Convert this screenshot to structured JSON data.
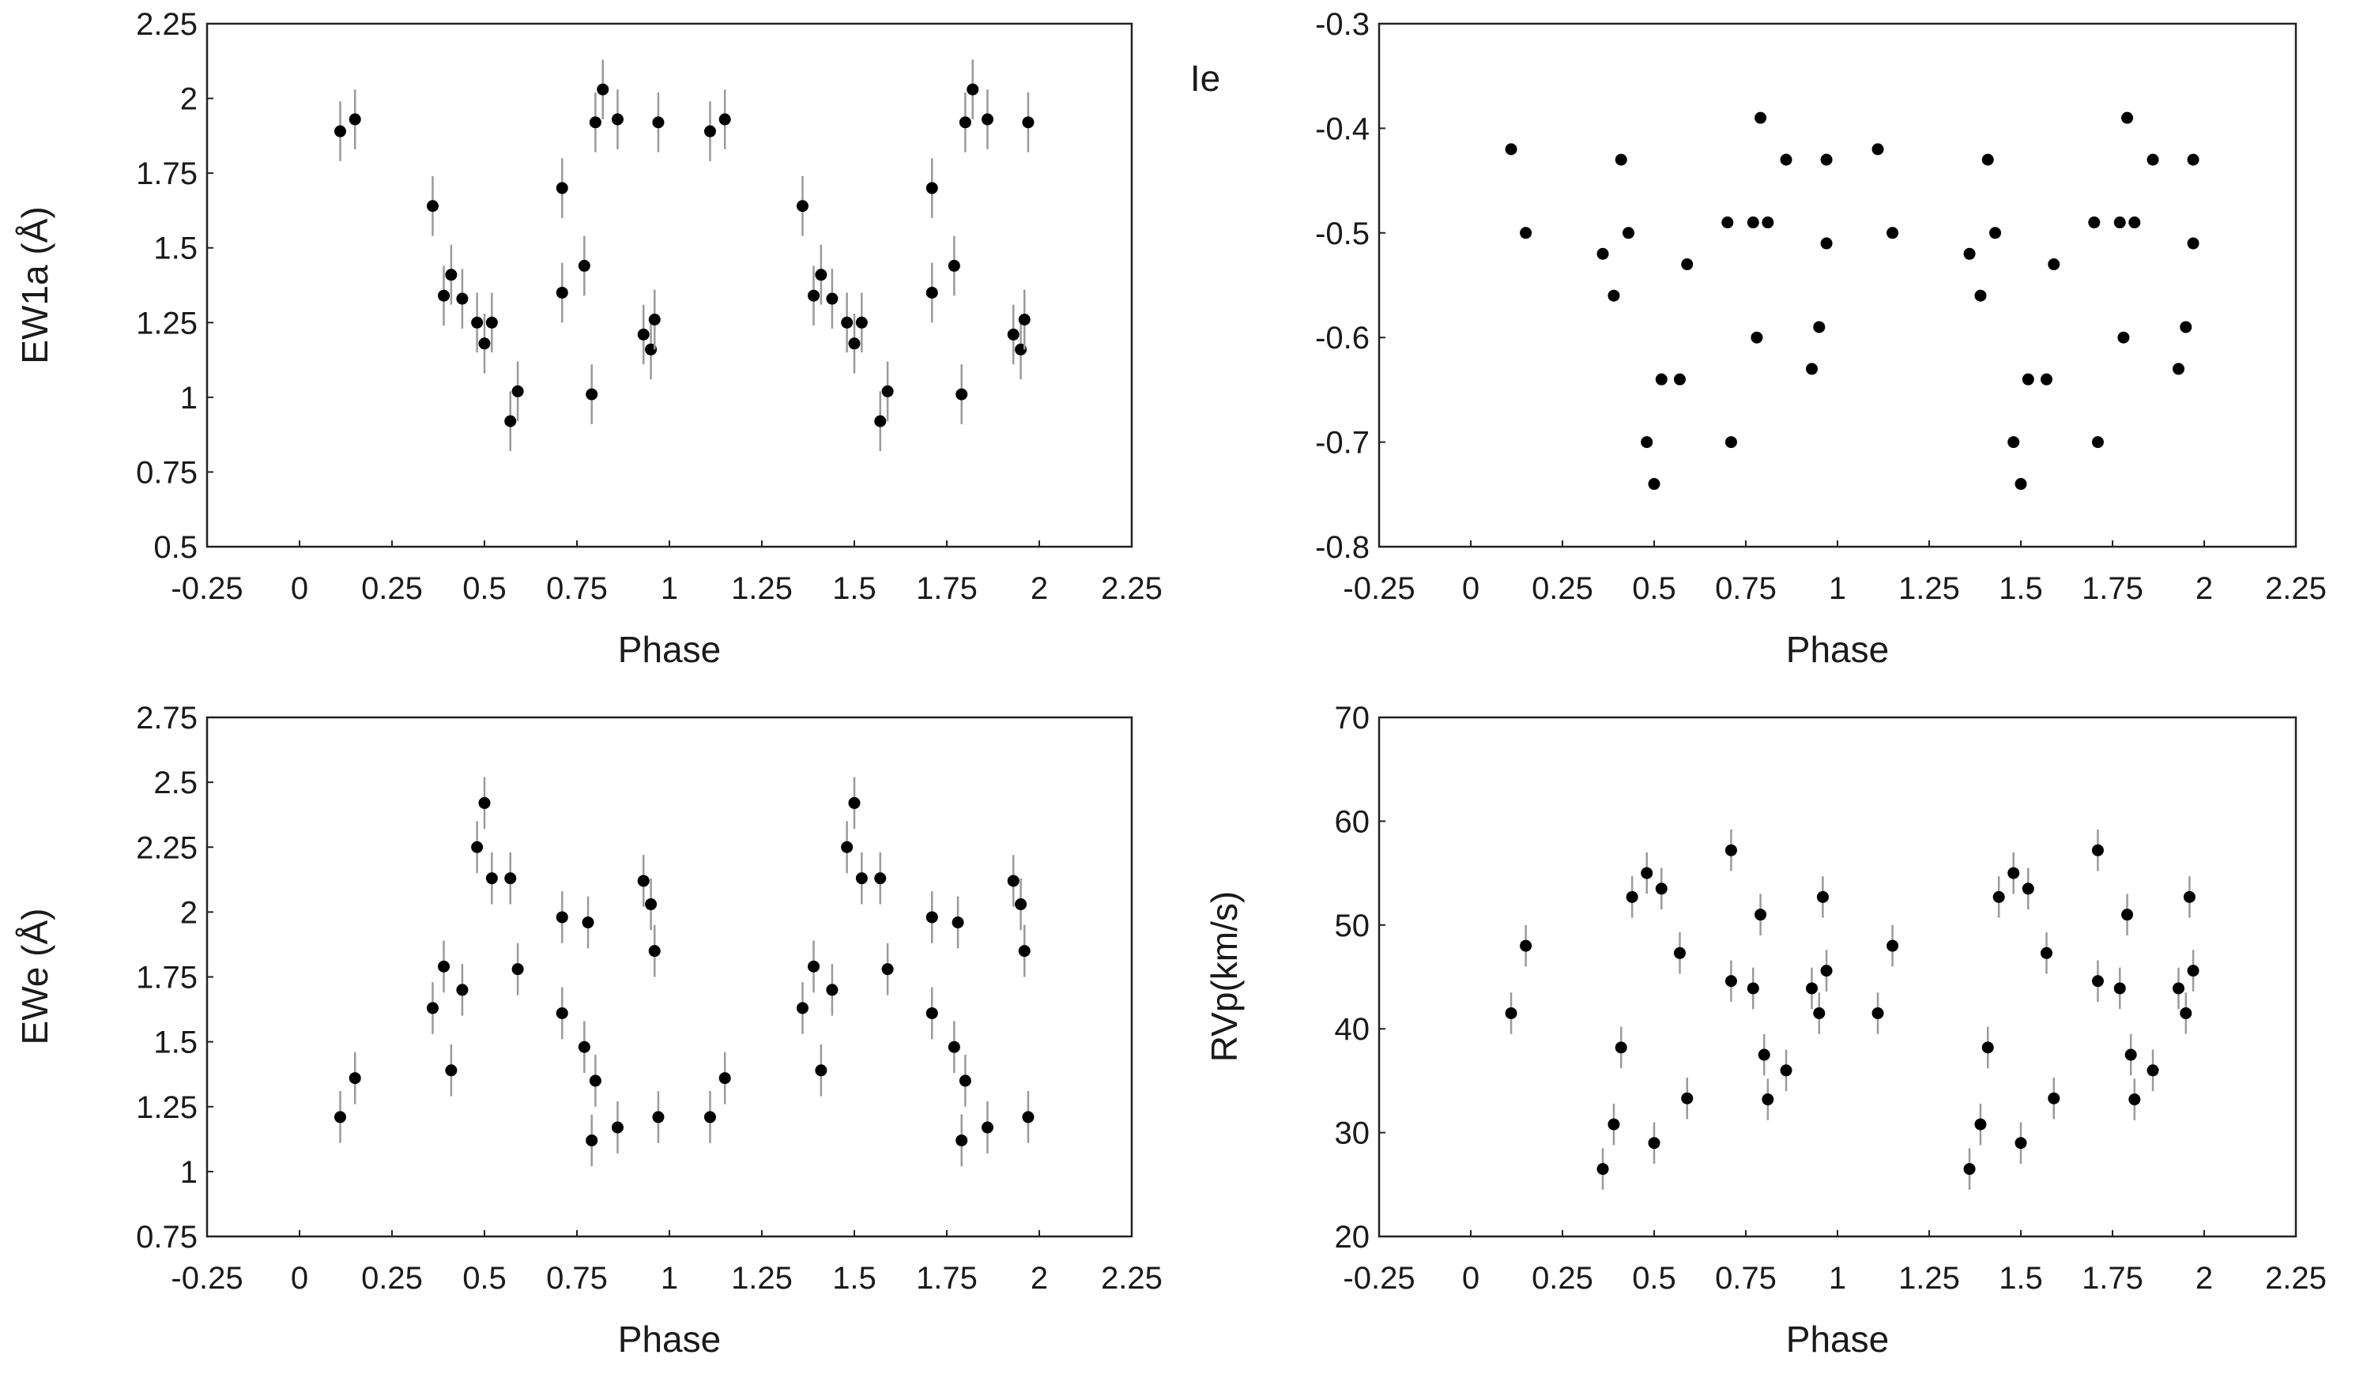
{
  "chart_data": [
    {
      "type": "scatter",
      "title": "",
      "xlabel": "Phase",
      "ylabel": "EW1a (Å)",
      "xlim": [
        -0.25,
        2.25
      ],
      "ylim": [
        0.5,
        2.25
      ],
      "xticks": [
        "-0.25",
        "0",
        "0.25",
        "0.5",
        "0.75",
        "1",
        "1.25",
        "1.5",
        "1.75",
        "2",
        "2.25"
      ],
      "yticks": [
        "0.5",
        "0.75",
        "1",
        "1.25",
        "1.5",
        "1.75",
        "2",
        "2.25"
      ],
      "error_bars": true,
      "error": 0.1,
      "x": [
        0.11,
        0.15,
        0.36,
        0.39,
        0.41,
        0.44,
        0.48,
        0.5,
        0.52,
        0.57,
        0.59,
        0.71,
        0.77,
        0.79,
        0.8,
        0.82,
        0.86,
        0.93,
        0.95,
        0.96,
        0.97,
        1.11,
        1.15,
        1.36,
        1.39,
        1.41,
        1.44,
        1.48,
        1.5,
        1.52,
        1.57,
        1.59,
        1.71,
        1.77,
        1.79,
        1.8,
        1.82,
        1.86,
        1.93,
        1.95,
        1.96,
        1.97
      ],
      "y": [
        1.89,
        1.93,
        1.64,
        1.34,
        1.41,
        1.33,
        1.25,
        1.18,
        1.25,
        0.92,
        1.02,
        1.35,
        1.44,
        1.01,
        1.92,
        2.03,
        1.93,
        1.21,
        1.16,
        1.26,
        1.92,
        1.89,
        1.93,
        1.64,
        1.34,
        1.41,
        1.33,
        1.25,
        1.18,
        1.25,
        0.92,
        1.02,
        1.35,
        1.44,
        1.01,
        1.92,
        2.03,
        1.93,
        1.21,
        1.16,
        1.26,
        1.92
      ],
      "extra_points": [
        [
          0.71,
          1.7
        ],
        [
          1.71,
          1.7
        ]
      ]
    },
    {
      "type": "scatter",
      "title": "",
      "xlabel": "Phase",
      "ylabel": "Ie",
      "xlim": [
        -0.25,
        2.25
      ],
      "ylim": [
        -0.8,
        -0.3
      ],
      "xticks": [
        "-0.25",
        "0",
        "0.25",
        "0.5",
        "0.75",
        "1",
        "1.25",
        "1.5",
        "1.75",
        "2",
        "2.25"
      ],
      "yticks": [
        "-0.8",
        "-0.7",
        "-0.6",
        "-0.5",
        "-0.4",
        "-0.3"
      ],
      "error_bars": false,
      "x": [
        0.11,
        0.15,
        0.36,
        0.39,
        0.41,
        0.43,
        0.48,
        0.5,
        0.52,
        0.57,
        0.59,
        0.71,
        0.7,
        0.77,
        0.78,
        0.79,
        0.81,
        0.86,
        0.93,
        0.95,
        0.97,
        0.97,
        1.11,
        1.15,
        1.36,
        1.39,
        1.41,
        1.43,
        1.48,
        1.5,
        1.52,
        1.57,
        1.59,
        1.71,
        1.7,
        1.77,
        1.78,
        1.79,
        1.81,
        1.86,
        1.93,
        1.95,
        1.97,
        1.97
      ],
      "y": [
        -0.42,
        -0.5,
        -0.52,
        -0.56,
        -0.43,
        -0.5,
        -0.7,
        -0.74,
        -0.64,
        -0.64,
        -0.53,
        -0.7,
        -0.49,
        -0.49,
        -0.6,
        -0.39,
        -0.49,
        -0.43,
        -0.63,
        -0.59,
        -0.51,
        -0.43,
        -0.42,
        -0.5,
        -0.52,
        -0.56,
        -0.43,
        -0.5,
        -0.7,
        -0.74,
        -0.64,
        -0.64,
        -0.53,
        -0.7,
        -0.49,
        -0.49,
        -0.6,
        -0.39,
        -0.49,
        -0.43,
        -0.63,
        -0.59,
        -0.51,
        -0.43
      ]
    },
    {
      "type": "scatter",
      "title": "",
      "xlabel": "Phase",
      "ylabel": "EWe (Å)",
      "xlim": [
        -0.25,
        2.25
      ],
      "ylim": [
        0.75,
        2.75
      ],
      "xticks": [
        "-0.25",
        "0",
        "0.25",
        "0.5",
        "0.75",
        "1",
        "1.25",
        "1.5",
        "1.75",
        "2",
        "2.25"
      ],
      "yticks": [
        "0.75",
        "1",
        "1.25",
        "1.5",
        "1.75",
        "2",
        "2.25",
        "2.5",
        "2.75"
      ],
      "error_bars": true,
      "error": 0.1,
      "x": [
        0.11,
        0.15,
        0.36,
        0.39,
        0.41,
        0.44,
        0.48,
        0.5,
        0.52,
        0.57,
        0.59,
        0.71,
        0.71,
        0.77,
        0.78,
        0.79,
        0.8,
        0.86,
        0.93,
        0.95,
        0.96,
        0.97,
        1.11,
        1.15,
        1.36,
        1.39,
        1.41,
        1.44,
        1.48,
        1.5,
        1.52,
        1.57,
        1.59,
        1.71,
        1.71,
        1.77,
        1.78,
        1.79,
        1.8,
        1.86,
        1.93,
        1.95,
        1.96,
        1.97
      ],
      "y": [
        1.21,
        1.36,
        1.63,
        1.79,
        1.39,
        1.7,
        2.25,
        2.42,
        2.13,
        2.13,
        1.78,
        1.61,
        1.98,
        1.48,
        1.96,
        1.12,
        1.35,
        1.17,
        2.12,
        2.03,
        1.85,
        1.21,
        1.21,
        1.36,
        1.63,
        1.79,
        1.39,
        1.7,
        2.25,
        2.42,
        2.13,
        2.13,
        1.78,
        1.61,
        1.98,
        1.48,
        1.96,
        1.12,
        1.35,
        1.17,
        2.12,
        2.03,
        1.85,
        1.21
      ]
    },
    {
      "type": "scatter",
      "title": "",
      "xlabel": "Phase",
      "ylabel": "RVp(km/s)",
      "xlim": [
        -0.25,
        2.25
      ],
      "ylim": [
        20,
        70
      ],
      "xticks": [
        "-0.25",
        "0",
        "0.25",
        "0.5",
        "0.75",
        "1",
        "1.25",
        "1.5",
        "1.75",
        "2",
        "2.25"
      ],
      "yticks": [
        "20",
        "30",
        "40",
        "50",
        "60",
        "70"
      ],
      "error_bars": true,
      "error": 2,
      "x": [
        0.11,
        0.15,
        0.36,
        0.39,
        0.41,
        0.44,
        0.48,
        0.5,
        0.52,
        0.57,
        0.59,
        0.71,
        0.71,
        0.77,
        0.79,
        0.8,
        0.81,
        0.86,
        0.93,
        0.95,
        0.96,
        0.97,
        1.11,
        1.15,
        1.36,
        1.39,
        1.41,
        1.44,
        1.48,
        1.5,
        1.52,
        1.57,
        1.59,
        1.71,
        1.71,
        1.77,
        1.79,
        1.8,
        1.81,
        1.86,
        1.93,
        1.95,
        1.96,
        1.97
      ],
      "y": [
        41.5,
        48,
        26.5,
        30.8,
        38.2,
        52.7,
        55,
        29,
        53.5,
        47.3,
        33.3,
        57.2,
        44.6,
        43.9,
        51,
        37.5,
        33.2,
        36,
        43.9,
        41.5,
        52.7,
        45.6,
        41.5,
        48,
        26.5,
        30.8,
        38.2,
        52.7,
        55,
        29,
        53.5,
        47.3,
        33.3,
        57.2,
        44.6,
        43.9,
        51,
        37.5,
        33.2,
        36,
        43.9,
        41.5,
        52.7,
        45.6
      ]
    }
  ]
}
